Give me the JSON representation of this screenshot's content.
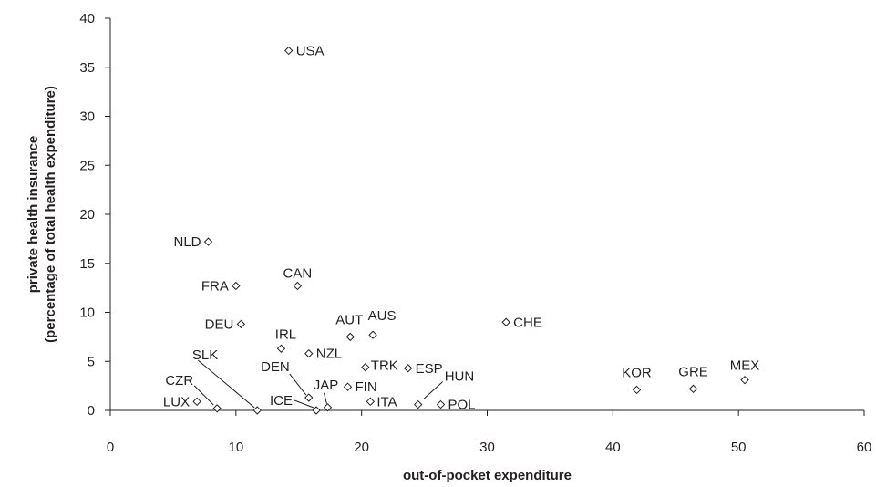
{
  "chart_data": {
    "type": "scatter",
    "xlabel": "out-of-pocket expenditure",
    "ylabel": "private health insurance",
    "ylabel_sub": "(percentage of total health expenditure)",
    "xlim": [
      0,
      60
    ],
    "ylim": [
      0,
      40
    ],
    "xticks": [
      0,
      10,
      20,
      30,
      40,
      50,
      60
    ],
    "yticks": [
      0,
      5,
      10,
      15,
      20,
      25,
      30,
      35,
      40
    ],
    "grid": false,
    "points": [
      {
        "label": "USA",
        "x": 14.2,
        "y": 36.7
      },
      {
        "label": "NLD",
        "x": 7.8,
        "y": 17.2
      },
      {
        "label": "CAN",
        "x": 14.9,
        "y": 12.7
      },
      {
        "label": "FRA",
        "x": 10.0,
        "y": 12.7
      },
      {
        "label": "DEU",
        "x": 10.4,
        "y": 8.8
      },
      {
        "label": "CHE",
        "x": 31.5,
        "y": 9.0
      },
      {
        "label": "AUT",
        "x": 19.1,
        "y": 7.5
      },
      {
        "label": "AUS",
        "x": 20.9,
        "y": 7.7
      },
      {
        "label": "IRL",
        "x": 13.6,
        "y": 6.3
      },
      {
        "label": "NZL",
        "x": 15.8,
        "y": 5.8
      },
      {
        "label": "TRK",
        "x": 20.3,
        "y": 4.4
      },
      {
        "label": "ESP",
        "x": 23.7,
        "y": 4.3
      },
      {
        "label": "FIN",
        "x": 18.9,
        "y": 2.4
      },
      {
        "label": "ITA",
        "x": 20.7,
        "y": 0.9
      },
      {
        "label": "POL",
        "x": 26.3,
        "y": 0.6
      },
      {
        "label": "HUN",
        "x": 24.5,
        "y": 0.6
      },
      {
        "label": "KOR",
        "x": 41.9,
        "y": 2.1
      },
      {
        "label": "GRE",
        "x": 46.4,
        "y": 2.2
      },
      {
        "label": "MEX",
        "x": 50.5,
        "y": 3.1
      },
      {
        "label": "LUX",
        "x": 6.9,
        "y": 0.9
      },
      {
        "label": "CZR",
        "x": 8.5,
        "y": 0.2
      },
      {
        "label": "SLK",
        "x": 11.7,
        "y": 0.0
      },
      {
        "label": "DEN",
        "x": 15.8,
        "y": 1.3
      },
      {
        "label": "ICE",
        "x": 16.4,
        "y": 0.0
      },
      {
        "label": "JAP",
        "x": 17.3,
        "y": 0.3
      }
    ]
  }
}
